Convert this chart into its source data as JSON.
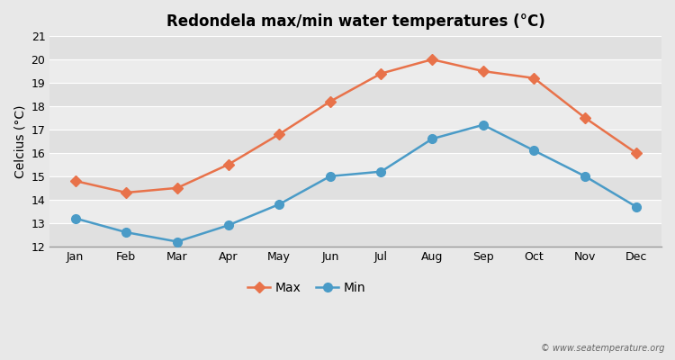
{
  "title": "Redondela max/min water temperatures (°C)",
  "ylabel": "Celcius (°C)",
  "months": [
    "Jan",
    "Feb",
    "Mar",
    "Apr",
    "May",
    "Jun",
    "Jul",
    "Aug",
    "Sep",
    "Oct",
    "Nov",
    "Dec"
  ],
  "max_temps": [
    14.8,
    14.3,
    14.5,
    15.5,
    16.8,
    18.2,
    19.4,
    20.0,
    19.5,
    19.2,
    17.5,
    16.0
  ],
  "min_temps": [
    13.2,
    12.6,
    12.2,
    12.9,
    13.8,
    15.0,
    15.2,
    16.6,
    17.2,
    16.1,
    15.0,
    13.7
  ],
  "max_color": "#e8724a",
  "min_color": "#4a9bc7",
  "bg_color": "#e8e8e8",
  "stripe_light": "#ececec",
  "stripe_dark": "#e0e0e0",
  "ylim": [
    12,
    21
  ],
  "yticks": [
    12,
    13,
    14,
    15,
    16,
    17,
    18,
    19,
    20,
    21
  ],
  "legend_labels": [
    "Max",
    "Min"
  ],
  "watermark": "© www.seatemperature.org",
  "linewidth": 1.8,
  "markersize_max": 6,
  "markersize_min": 7,
  "title_fontsize": 12,
  "axis_fontsize": 9,
  "legend_fontsize": 10
}
